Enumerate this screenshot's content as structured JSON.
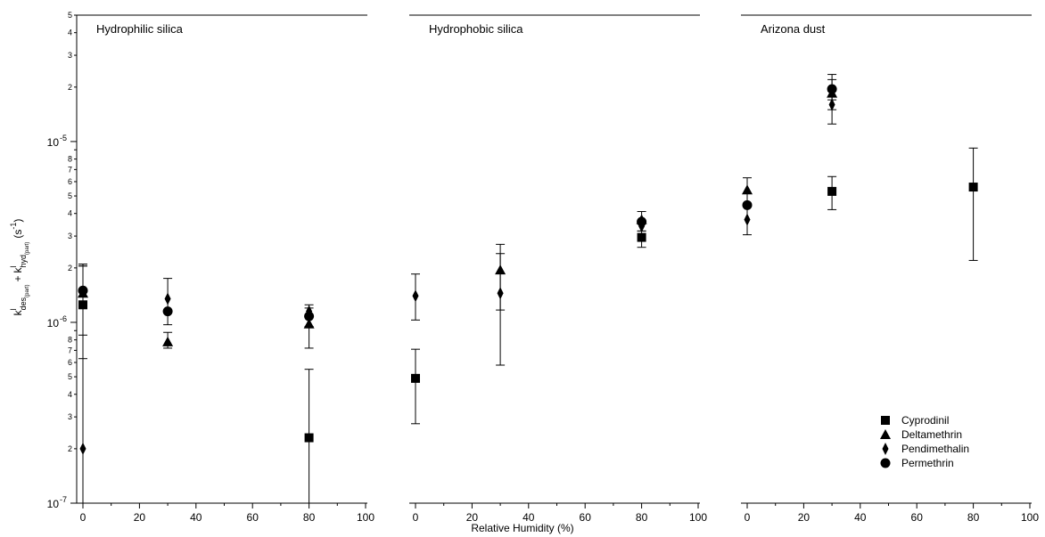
{
  "chart_data": {
    "type": "scatter",
    "xlabel": "Relative Humidity (%)",
    "ylabel": "k",
    "ylabel_parts": {
      "k1": "k",
      "k1_sup": "l",
      "k1_sub": "des",
      "k1_subsub": "(part)",
      "plus": "+",
      "k2": "k",
      "k2_sup": "l",
      "k2_sub": "hyd",
      "k2_subsub": "(part)",
      "unit_open": "(s",
      "unit_sup": "-1",
      "unit_close": ")"
    },
    "yscale": "log",
    "ylim": [
      1e-07,
      5e-05
    ],
    "xlim": [
      -2,
      100
    ],
    "xticks": [
      0,
      20,
      40,
      60,
      80,
      100
    ],
    "xtick_labels": [
      "0",
      "20",
      "40",
      "60",
      "80",
      "100"
    ],
    "ytick_major": [
      {
        "value": 1e-07,
        "base": "10",
        "exp": "-7"
      },
      {
        "value": 1e-06,
        "base": "10",
        "exp": "-6"
      },
      {
        "value": 1e-05,
        "base": "10",
        "exp": "-5"
      }
    ],
    "ytick_minor_labels": [
      "2",
      "3",
      "4",
      "5",
      "6",
      "7",
      "8"
    ],
    "ytick_top_label": "5",
    "legend_position": "bottom-right",
    "series": [
      {
        "name": "Cyprodinil",
        "marker": "square"
      },
      {
        "name": "Deltamethrin",
        "marker": "triangle"
      },
      {
        "name": "Pendimethalin",
        "marker": "diamond"
      },
      {
        "name": "Permethrin",
        "marker": "circle"
      }
    ],
    "panels": [
      {
        "title": "Hydrophilic silica",
        "points": [
          {
            "series": "Cyprodinil",
            "x": 0,
            "y": 1.25e-06,
            "ylo": 6.3e-07,
            "yhi": 2.1e-06
          },
          {
            "series": "Deltamethrin",
            "x": 0,
            "y": 1.45e-06,
            "ylo": 1e-07,
            "yhi": 2.05e-06
          },
          {
            "series": "Pendimethalin",
            "x": 0,
            "y": 2e-07,
            "ylo": 1e-07,
            "yhi": 2.1e-06
          },
          {
            "series": "Permethrin",
            "x": 0,
            "y": 1.5e-06,
            "ylo": 8.5e-07,
            "yhi": 2.05e-06
          },
          {
            "series": "Deltamethrin",
            "x": 30,
            "y": 7.8e-07,
            "ylo": 7.2e-07,
            "yhi": 8.8e-07
          },
          {
            "series": "Pendimethalin",
            "x": 30,
            "y": 1.35e-06,
            "ylo": 9.7e-07,
            "yhi": 1.75e-06
          },
          {
            "series": "Permethrin",
            "x": 30,
            "y": 1.15e-06
          },
          {
            "series": "Cyprodinil",
            "x": 80,
            "y": 2.3e-07,
            "ylo": 1e-07,
            "yhi": 5.5e-07
          },
          {
            "series": "Deltamethrin",
            "x": 80,
            "y": 9.8e-07,
            "ylo": 7.2e-07,
            "yhi": 1.25e-06
          },
          {
            "series": "Pendimethalin",
            "x": 80,
            "y": 1.15e-06
          },
          {
            "series": "Permethrin",
            "x": 80,
            "y": 1.08e-06,
            "ylo": 9.5e-07,
            "yhi": 1.2e-06
          }
        ]
      },
      {
        "title": "Hydrophobic silica",
        "points": [
          {
            "series": "Cyprodinil",
            "x": 0,
            "y": 4.9e-07,
            "ylo": 2.75e-07,
            "yhi": 7.1e-07
          },
          {
            "series": "Pendimethalin",
            "x": 0,
            "y": 1.4e-06,
            "ylo": 1.03e-06,
            "yhi": 1.85e-06
          },
          {
            "series": "Deltamethrin",
            "x": 30,
            "y": 1.95e-06,
            "ylo": 1.17e-06,
            "yhi": 2.4e-06
          },
          {
            "series": "Pendimethalin",
            "x": 30,
            "y": 1.45e-06,
            "ylo": 5.8e-07,
            "yhi": 2.7e-06
          },
          {
            "series": "Cyprodinil",
            "x": 80,
            "y": 2.95e-06,
            "ylo": 2.6e-06,
            "yhi": 3.2e-06
          },
          {
            "series": "Deltamethrin",
            "x": 80,
            "y": 3.7e-06,
            "ylo": 3.2e-06,
            "yhi": 4.1e-06
          },
          {
            "series": "Pendimethalin",
            "x": 80,
            "y": 3.4e-06
          },
          {
            "series": "Permethrin",
            "x": 80,
            "y": 3.6e-06
          }
        ]
      },
      {
        "title": "Arizona dust",
        "points": [
          {
            "series": "Deltamethrin",
            "x": 0,
            "y": 5.4e-06,
            "ylo": 4.5e-06,
            "yhi": 6.3e-06
          },
          {
            "series": "Pendimethalin",
            "x": 0,
            "y": 3.7e-06,
            "ylo": 3.05e-06,
            "yhi": 4.4e-06
          },
          {
            "series": "Permethrin",
            "x": 0,
            "y": 4.45e-06
          },
          {
            "series": "Cyprodinil",
            "x": 30,
            "y": 5.3e-06,
            "ylo": 4.2e-06,
            "yhi": 6.4e-06
          },
          {
            "series": "Deltamethrin",
            "x": 30,
            "y": 1.85e-05,
            "ylo": 1.5e-05,
            "yhi": 2.2e-05
          },
          {
            "series": "Pendimethalin",
            "x": 30,
            "y": 1.6e-05,
            "ylo": 1.25e-05,
            "yhi": 1.9e-05
          },
          {
            "series": "Permethrin",
            "x": 30,
            "y": 1.95e-05,
            "ylo": 1.7e-05,
            "yhi": 2.35e-05
          },
          {
            "series": "Cyprodinil",
            "x": 80,
            "y": 5.6e-06,
            "ylo": 2.2e-06,
            "yhi": 9.2e-06
          }
        ]
      }
    ]
  }
}
